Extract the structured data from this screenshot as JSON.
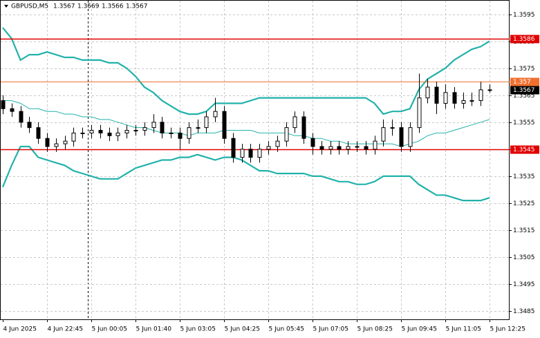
{
  "chart_data": {
    "type": "candlestick",
    "symbol": "GBPUSD,M5",
    "categories": [
      "4 Jun 2025",
      null,
      null,
      null,
      null,
      "4 Jun 22:45",
      null,
      null,
      null,
      null,
      "5 Jun 00:05",
      null,
      null,
      null,
      null,
      "5 Jun 01:40",
      null,
      null,
      null,
      null,
      "5 Jun 03:05",
      null,
      null,
      null,
      null,
      "5 Jun 04:25",
      null,
      null,
      null,
      null,
      "5 Jun 05:45",
      null,
      null,
      null,
      null,
      "5 Jun 07:05",
      null,
      null,
      null,
      null,
      "5 Jun 08:25",
      null,
      null,
      null,
      null,
      "5 Jun 09:45",
      null,
      null,
      null,
      null,
      "5 Jun 11:05",
      null,
      null,
      null,
      null,
      "5 Jun 12:25"
    ],
    "open": [
      1.3563,
      1.356,
      1.3559,
      1.3555,
      1.3553,
      1.3549,
      1.3546,
      1.3547,
      1.3548,
      1.3551,
      1.3551,
      1.3552,
      1.3551,
      1.355,
      1.3551,
      1.3552,
      1.3552,
      1.3553,
      1.3555,
      1.3551,
      1.3551,
      1.3549,
      1.3553,
      1.3553,
      1.3557,
      1.3559,
      1.3549,
      1.3542,
      1.3545,
      1.3542,
      1.3545,
      1.3546,
      1.3548,
      1.3553,
      1.3557,
      1.3549,
      1.3546,
      1.3545,
      1.3546,
      1.3545,
      1.3546,
      1.3546,
      1.3545,
      1.3548,
      1.3553,
      1.3553,
      1.3546,
      1.3553,
      1.3564,
      1.3568,
      1.3562,
      1.3566,
      1.3562,
      1.3563,
      1.3563,
      1.3567
    ],
    "high": [
      1.3565,
      1.3562,
      1.3561,
      1.3557,
      1.3555,
      1.3551,
      1.3549,
      1.355,
      1.3553,
      1.3553,
      1.3554,
      1.3554,
      1.3553,
      1.3553,
      1.3554,
      1.3554,
      1.3555,
      1.3558,
      1.3557,
      1.3553,
      1.3553,
      1.3555,
      1.3556,
      1.3559,
      1.3564,
      1.3561,
      1.3551,
      1.3547,
      1.3547,
      1.3547,
      1.3548,
      1.355,
      1.3555,
      1.3559,
      1.3559,
      1.3551,
      1.3548,
      1.3548,
      1.3548,
      1.3548,
      1.3548,
      1.3548,
      1.355,
      1.3556,
      1.3556,
      1.3555,
      1.3555,
      1.3573,
      1.3571,
      1.357,
      1.3569,
      1.3568,
      1.3566,
      1.3566,
      1.357,
      1.3569
    ],
    "low": [
      1.3558,
      1.3557,
      1.3553,
      1.3551,
      1.3547,
      1.3544,
      1.3544,
      1.3545,
      1.3546,
      1.3549,
      1.3549,
      1.3549,
      1.3548,
      1.3548,
      1.3549,
      1.355,
      1.355,
      1.3551,
      1.3549,
      1.3549,
      1.3545,
      1.3547,
      1.3551,
      1.3551,
      1.3555,
      1.3547,
      1.354,
      1.354,
      1.354,
      1.354,
      1.3543,
      1.3544,
      1.3546,
      1.3551,
      1.3547,
      1.3543,
      1.3543,
      1.3543,
      1.3543,
      1.3543,
      1.3544,
      1.3543,
      1.3543,
      1.3546,
      1.355,
      1.3544,
      1.3544,
      1.3551,
      1.3562,
      1.3558,
      1.356,
      1.356,
      1.356,
      1.3561,
      1.3561,
      1.3566
    ],
    "close": [
      1.356,
      1.3559,
      1.3555,
      1.3553,
      1.3549,
      1.3546,
      1.3547,
      1.3548,
      1.3551,
      1.3551,
      1.3552,
      1.3551,
      1.355,
      1.3551,
      1.3552,
      1.3552,
      1.3553,
      1.3555,
      1.3551,
      1.3551,
      1.3549,
      1.3553,
      1.3553,
      1.3557,
      1.3559,
      1.3549,
      1.3542,
      1.3545,
      1.3542,
      1.3545,
      1.3546,
      1.3548,
      1.3553,
      1.3557,
      1.3549,
      1.3546,
      1.3545,
      1.3546,
      1.3545,
      1.3546,
      1.3546,
      1.3545,
      1.3548,
      1.3553,
      1.3553,
      1.3546,
      1.3553,
      1.3564,
      1.3568,
      1.3562,
      1.3566,
      1.3562,
      1.3563,
      1.3563,
      1.3567,
      1.3567
    ],
    "bands": [
      {
        "color": "#20b2aa",
        "values": [
          1.359,
          1.3586,
          1.3578,
          1.358,
          1.358,
          1.3581,
          1.358,
          1.3579,
          1.3579,
          1.3578,
          1.3578,
          1.3578,
          1.3577,
          1.3577,
          1.3575,
          1.3572,
          1.3568,
          1.3566,
          1.3563,
          1.3561,
          1.3559,
          1.3558,
          1.3558,
          1.3559,
          1.3562,
          1.3562,
          1.3562,
          1.3562,
          1.3563,
          1.3564,
          1.3564,
          1.3564,
          1.3564,
          1.3564,
          1.3564,
          1.3564,
          1.3564,
          1.3564,
          1.3564,
          1.3564,
          1.3564,
          1.3564,
          1.3562,
          1.3558,
          1.3559,
          1.3559,
          1.356,
          1.3567,
          1.3571,
          1.3573,
          1.3575,
          1.3578,
          1.358,
          1.3582,
          1.3583,
          1.3585
        ]
      },
      {
        "color": "#20b2aa",
        "values": [
          1.3563,
          1.3563,
          1.3562,
          1.356,
          1.356,
          1.3559,
          1.3559,
          1.3558,
          1.3558,
          1.3557,
          1.3557,
          1.3556,
          1.3556,
          1.3555,
          1.3554,
          1.3553,
          1.3553,
          1.3552,
          1.3551,
          1.3551,
          1.3551,
          1.355,
          1.3551,
          1.3551,
          1.3551,
          1.3552,
          1.3552,
          1.3552,
          1.3552,
          1.3551,
          1.3551,
          1.3551,
          1.3551,
          1.355,
          1.355,
          1.3549,
          1.3549,
          1.3548,
          1.3548,
          1.3547,
          1.3547,
          1.3547,
          1.3547,
          1.3547,
          1.3547,
          1.3546,
          1.3547,
          1.3548,
          1.355,
          1.3551,
          1.3551,
          1.3552,
          1.3553,
          1.3554,
          1.3555,
          1.3556
        ]
      },
      {
        "color": "#20b2aa",
        "values": [
          1.3531,
          1.3539,
          1.3546,
          1.3546,
          1.3542,
          1.3541,
          1.354,
          1.3539,
          1.3537,
          1.3536,
          1.3535,
          1.3534,
          1.3534,
          1.3534,
          1.3536,
          1.3538,
          1.3539,
          1.354,
          1.3541,
          1.3541,
          1.3542,
          1.3542,
          1.3543,
          1.3542,
          1.3541,
          1.3542,
          1.3542,
          1.3541,
          1.3539,
          1.3537,
          1.3537,
          1.3536,
          1.3536,
          1.3536,
          1.3536,
          1.3535,
          1.3535,
          1.3534,
          1.3533,
          1.3533,
          1.3532,
          1.3532,
          1.3533,
          1.3535,
          1.3535,
          1.3535,
          1.3535,
          1.3532,
          1.353,
          1.3528,
          1.3528,
          1.3527,
          1.3526,
          1.3526,
          1.3526,
          1.3527
        ]
      }
    ],
    "levels": [
      {
        "value": 1.3586,
        "color": "#e00000"
      },
      {
        "value": 1.357,
        "color": "#f07030"
      },
      {
        "value": 1.3545,
        "color": "#e00000"
      }
    ],
    "ylim": [
      1.3482,
      1.36
    ],
    "yticks": [
      1.3595,
      1.3585,
      1.3575,
      1.3565,
      1.3555,
      1.3545,
      1.3535,
      1.3525,
      1.3515,
      1.3505,
      1.3495,
      1.3485
    ],
    "grid": true
  }
}
